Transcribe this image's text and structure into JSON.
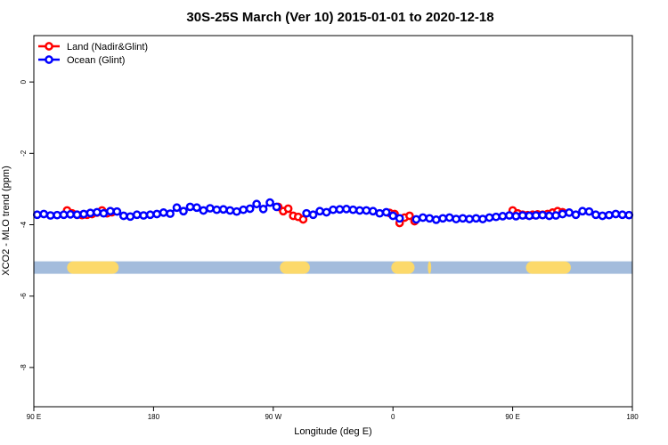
{
  "chart_data": {
    "type": "line",
    "title": "30S-25S March (Ver 10)   2015-01-01 to 2020-12-18",
    "xlabel": "Longitude (deg E)",
    "ylabel": "XCO2 - MLO trend (ppm)",
    "xlim": [
      90,
      450
    ],
    "ylim": [
      -9.1,
      1.3
    ],
    "x_ticks": [
      {
        "value": 90,
        "label": "90 E"
      },
      {
        "value": 162,
        "label": "180"
      },
      {
        "value": 234,
        "label": "90 W"
      },
      {
        "value": 306,
        "label": "0"
      },
      {
        "value": 378,
        "label": "90 E"
      },
      {
        "value": 450,
        "label": "180"
      }
    ],
    "y_ticks": [
      0,
      -2,
      -4,
      -6,
      -8
    ],
    "legend": {
      "placement": "top-left"
    },
    "series": [
      {
        "name": "Land (Nadir&Glint)",
        "color": "#ff0000",
        "segments": [
          {
            "x": [
              110,
              113,
              116,
              119,
              122,
              125,
              128,
              131,
              134,
              137
            ],
            "y": [
              -3.6,
              -3.68,
              -3.72,
              -3.73,
              -3.72,
              -3.7,
              -3.66,
              -3.6,
              -3.68,
              -3.65
            ]
          },
          {
            "x": [
              237,
              240,
              243,
              246,
              249,
              252
            ],
            "y": [
              -3.5,
              -3.62,
              -3.55,
              -3.75,
              -3.78,
              -3.85
            ]
          },
          {
            "x": [
              304,
              307,
              310,
              313,
              316,
              319
            ],
            "y": [
              -3.67,
              -3.7,
              -3.95,
              -3.8,
              -3.75,
              -3.9
            ]
          },
          {
            "x": [
              378,
              381,
              384,
              387,
              390,
              393,
              396,
              399,
              402,
              405,
              408
            ],
            "y": [
              -3.6,
              -3.68,
              -3.72,
              -3.73,
              -3.72,
              -3.71,
              -3.72,
              -3.7,
              -3.66,
              -3.62,
              -3.65
            ]
          }
        ]
      },
      {
        "name": "Ocean (Glint)",
        "color": "#0000ff",
        "segments": [
          {
            "x": [
              92,
              96,
              100,
              104,
              108,
              112,
              116,
              120,
              124,
              128,
              132,
              136,
              140
            ],
            "y": [
              -3.72,
              -3.7,
              -3.74,
              -3.73,
              -3.72,
              -3.71,
              -3.72,
              -3.7,
              -3.67,
              -3.65,
              -3.68,
              -3.62,
              -3.63
            ]
          },
          {
            "x": [
              144,
              148,
              152,
              156,
              160,
              164,
              168,
              172,
              176,
              180,
              184,
              188,
              192,
              196,
              200,
              204,
              208,
              212,
              216,
              220,
              224,
              228,
              232,
              236
            ],
            "y": [
              -3.75,
              -3.77,
              -3.72,
              -3.74,
              -3.72,
              -3.7,
              -3.66,
              -3.69,
              -3.52,
              -3.62,
              -3.5,
              -3.52,
              -3.6,
              -3.54,
              -3.58,
              -3.57,
              -3.6,
              -3.63,
              -3.58,
              -3.55,
              -3.42,
              -3.56,
              -3.38,
              -3.5
            ]
          },
          {
            "x": [
              254,
              258,
              262,
              266,
              270,
              274,
              278,
              282,
              286,
              290,
              294,
              298,
              302,
              306,
              310
            ],
            "y": [
              -3.68,
              -3.72,
              -3.62,
              -3.65,
              -3.58,
              -3.57,
              -3.56,
              -3.58,
              -3.6,
              -3.6,
              -3.62,
              -3.68,
              -3.65,
              -3.75,
              -3.82
            ]
          },
          {
            "x": [
              320,
              324,
              328,
              332,
              336,
              340,
              344,
              348,
              352,
              356,
              360,
              364,
              368,
              372,
              376
            ],
            "y": [
              -3.85,
              -3.8,
              -3.82,
              -3.86,
              -3.82,
              -3.8,
              -3.84,
              -3.82,
              -3.84,
              -3.82,
              -3.84,
              -3.8,
              -3.78,
              -3.76,
              -3.74
            ]
          },
          {
            "x": [
              380,
              384,
              388,
              392,
              396,
              400,
              404,
              408,
              412,
              416,
              420,
              424,
              428,
              432,
              436,
              440,
              444,
              448
            ],
            "y": [
              -3.76,
              -3.74,
              -3.75,
              -3.74,
              -3.73,
              -3.75,
              -3.74,
              -3.7,
              -3.66,
              -3.72,
              -3.62,
              -3.63,
              -3.72,
              -3.75,
              -3.73,
              -3.7,
              -3.72,
              -3.73
            ]
          }
        ]
      }
    ],
    "land_mask_bar": {
      "y": -5.2,
      "ocean_color": "#a3bcdc",
      "land_color": "#fcd96a",
      "land_ranges": [
        [
          110,
          141
        ],
        [
          238,
          256
        ],
        [
          305,
          319
        ],
        [
          327,
          329
        ],
        [
          386,
          413
        ]
      ]
    }
  }
}
